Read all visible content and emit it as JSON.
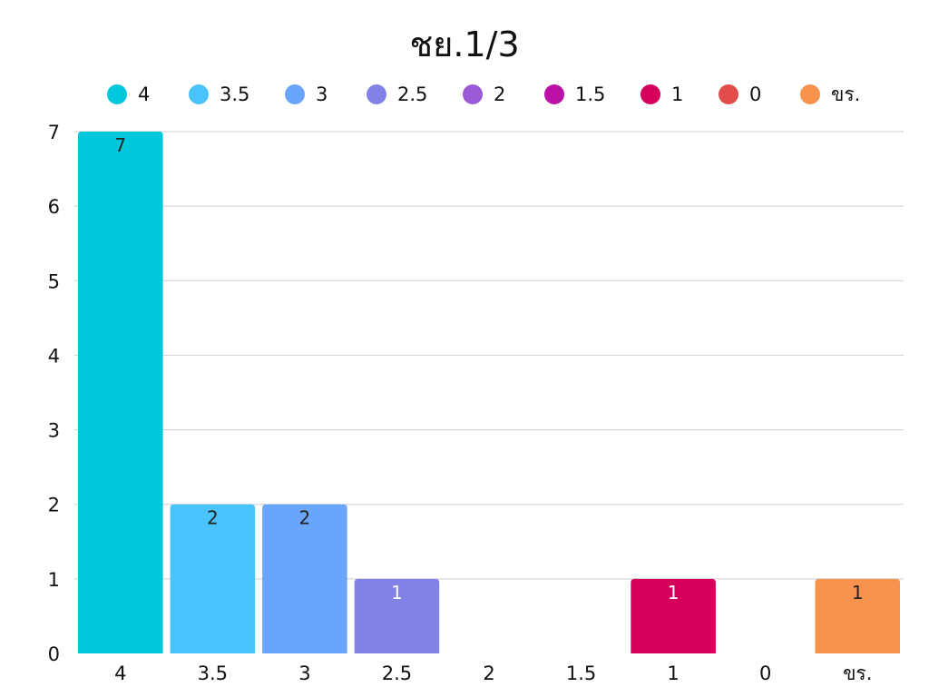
{
  "chart_data": {
    "type": "bar",
    "title": "ชย.1/3",
    "categories": [
      "4",
      "3.5",
      "3",
      "2.5",
      "2",
      "1.5",
      "1",
      "0",
      "ขร."
    ],
    "values": [
      7,
      2,
      2,
      1,
      0,
      0,
      1,
      0,
      1
    ],
    "colors": [
      "#00c8dc",
      "#4ac3fd",
      "#69a6fb",
      "#8181e6",
      "#9b5bd6",
      "#bb11a7",
      "#d4005c",
      "#e24c4c",
      "#f7934f"
    ],
    "legend": [
      "4",
      "3.5",
      "3",
      "2.5",
      "2",
      "1.5",
      "1",
      "0",
      "ขร."
    ],
    "legend_position": "top",
    "ylim": [
      0,
      7
    ],
    "yticks": [
      "0",
      "1",
      "2",
      "3",
      "4",
      "5",
      "6",
      "7"
    ],
    "grid": true,
    "data_labels": [
      "7",
      "2",
      "2",
      "1",
      "",
      "",
      "1",
      "",
      "1"
    ],
    "data_label_colors": [
      "#222222",
      "#222222",
      "#222222",
      "#ffffff",
      "",
      "",
      "#ffffff",
      "",
      "#222222"
    ]
  }
}
